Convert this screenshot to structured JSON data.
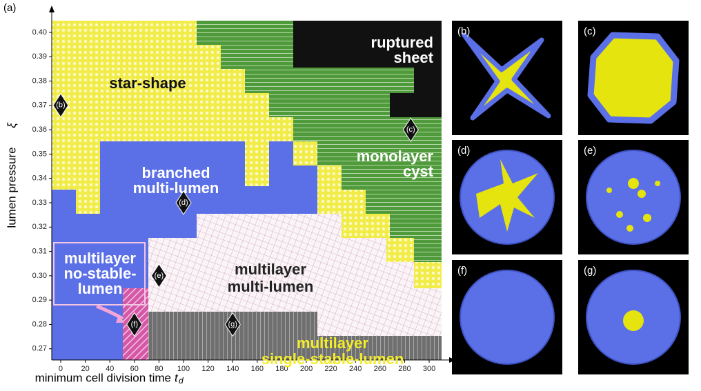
{
  "chart_data": {
    "type": "phase-diagram",
    "panel_label": "(a)",
    "xlabel": "minimum cell division time",
    "xlabel_symbol": "t",
    "xlabel_subscript": "d",
    "ylabel": "lumen pressure",
    "ylabel_symbol": "ξ",
    "xlim": [
      -7.3,
      310.1
    ],
    "ylim": [
      0.2654,
      0.4048
    ],
    "xticks": [
      0,
      20,
      40,
      60,
      80,
      100,
      120,
      140,
      160,
      180,
      200,
      220,
      240,
      260,
      280,
      300
    ],
    "yticks": [
      0.27,
      0.28,
      0.29,
      {
        "value": 0.3,
        "label": "0.30"
      },
      0.31,
      0.32,
      0.33,
      0.34,
      0.35,
      0.36,
      0.37,
      0.38,
      0.39,
      {
        "value": 0.4,
        "label": "0.40"
      }
    ],
    "regions": [
      {
        "lines": [
          "star-shape"
        ]
      },
      {
        "lines": [
          "ruptured",
          "sheet"
        ]
      },
      {
        "lines": [
          "monolayer",
          "cyst"
        ]
      },
      {
        "lines": [
          "branched",
          "multi-lumen"
        ]
      },
      {
        "lines": [
          "multilayer",
          "no-stable-",
          "lumen"
        ]
      },
      {
        "lines": [
          "multilayer",
          "multi-lumen"
        ]
      },
      {
        "lines": [
          "multilayer",
          "single-stable-lumen"
        ]
      }
    ],
    "markers": [
      {
        "label": "(b)",
        "x": 0,
        "y": 0.37
      },
      {
        "label": "(c)",
        "x": 285,
        "y": 0.36
      },
      {
        "label": "(d)",
        "x": 100,
        "y": 0.33
      },
      {
        "label": "(e)",
        "x": 80,
        "y": 0.3
      },
      {
        "label": "(f)",
        "x": 60,
        "y": 0.28
      },
      {
        "label": "(g)",
        "x": 140,
        "y": 0.28
      }
    ],
    "panels": [
      "(b)",
      "(c)",
      "(d)",
      "(e)",
      "(f)",
      "(g)"
    ]
  }
}
